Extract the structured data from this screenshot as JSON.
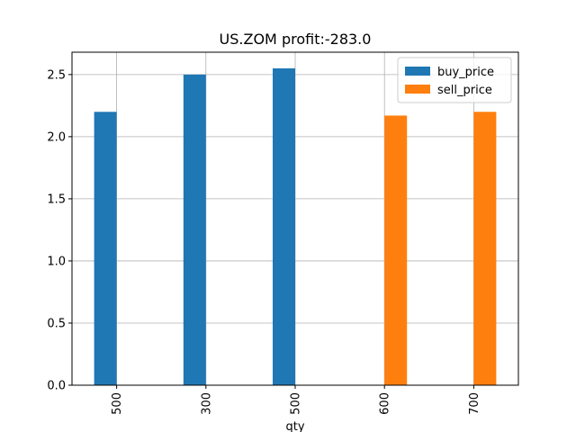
{
  "chart_data": {
    "type": "bar",
    "title": "US.ZOM  profit:-283.0",
    "xlabel": "qty",
    "ylabel": "",
    "categories": [
      "500",
      "300",
      "500",
      "600",
      "700"
    ],
    "series": [
      {
        "name": "buy_price",
        "color": "#1f77b4",
        "values": [
          2.2,
          2.5,
          2.55,
          null,
          null
        ]
      },
      {
        "name": "sell_price",
        "color": "#ff7f0e",
        "values": [
          null,
          null,
          null,
          2.17,
          2.2
        ]
      }
    ],
    "ylim": [
      0,
      2.68
    ],
    "yticks": [
      "0.0",
      "0.5",
      "1.0",
      "1.5",
      "2.0",
      "2.5"
    ],
    "grid": true,
    "legend_position": "top-right"
  }
}
